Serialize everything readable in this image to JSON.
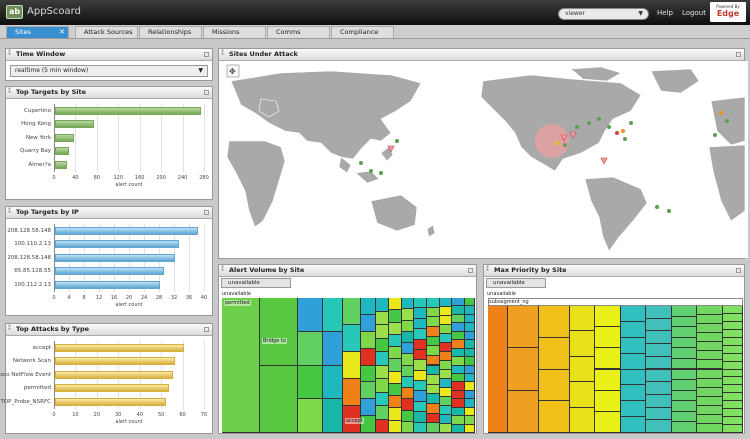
{
  "app": {
    "logo": "ab",
    "name": "AppScoard",
    "user": "viewer",
    "help": "Help",
    "logout": "Logout",
    "powered_by": "Powered By",
    "powered_brand": "Edge"
  },
  "tabs": [
    {
      "label": "Sites",
      "active": true
    },
    {
      "label": "Attack Sources"
    },
    {
      "label": "Relationships"
    },
    {
      "label": "Missions"
    },
    {
      "label": "Comms"
    },
    {
      "label": "Compliance"
    }
  ],
  "time_window": {
    "title": "Time Window",
    "value": "realtime (5 min window)"
  },
  "targets_by_site": {
    "title": "Top Targets by Site",
    "xlabel": "alert count",
    "ticks": [
      "0",
      "40",
      "80",
      "120",
      "160",
      "200",
      "240",
      "280"
    ],
    "rows": [
      {
        "label": "Cupertino",
        "value": 272
      },
      {
        "label": "Hong Kong",
        "value": 72
      },
      {
        "label": "New York",
        "value": 35
      },
      {
        "label": "Quarry Bay",
        "value": 26
      },
      {
        "label": "Almer?a",
        "value": 22
      }
    ]
  },
  "targets_by_ip": {
    "title": "Top Targets by IP",
    "xlabel": "alert count",
    "ticks": [
      "0",
      "4",
      "8",
      "12",
      "16",
      "20",
      "24",
      "28",
      "32",
      "36",
      "40"
    ],
    "rows": [
      {
        "label": "208.128.58.148",
        "value": 38
      },
      {
        "label": "100.110.2.13",
        "value": 33
      },
      {
        "label": "208.128.58.148",
        "value": 32
      },
      {
        "label": "65.85.128.55",
        "value": 29
      },
      {
        "label": "100.112.2.13",
        "value": 28
      }
    ]
  },
  "attacks_by_type": {
    "title": "Top Attacks by Type",
    "xlabel": "alert count",
    "ticks": [
      "0",
      "10",
      "20",
      "30",
      "40",
      "50",
      "60",
      "70"
    ],
    "rows": [
      {
        "label": "accept",
        "value": 60
      },
      {
        "label": "Network Scan",
        "value": 56
      },
      {
        "label": "Cisco NetFlow Event",
        "value": 55
      },
      {
        "label": "permitted",
        "value": 53
      },
      {
        "label": "TOP_Probe_NSRFC",
        "value": 52
      }
    ]
  },
  "sites_under_attack": {
    "title": "Sites Under Attack"
  },
  "alert_volume": {
    "title": "Alert Volume by Site",
    "breadcrumb": "unavailable",
    "header": "unavailable",
    "labels": [
      "permitted",
      "Bridge to",
      "accept"
    ]
  },
  "max_priority": {
    "title": "Max Priority by Site",
    "breadcrumb": "unavailable",
    "header": "unavailable",
    "sub": "subsegment_ng"
  },
  "colors": {
    "accent": "#3a8fd0",
    "green_bar": "#8cbf6a",
    "blue_bar": "#6fb3dc",
    "yellow_bar": "#f0d56a"
  }
}
